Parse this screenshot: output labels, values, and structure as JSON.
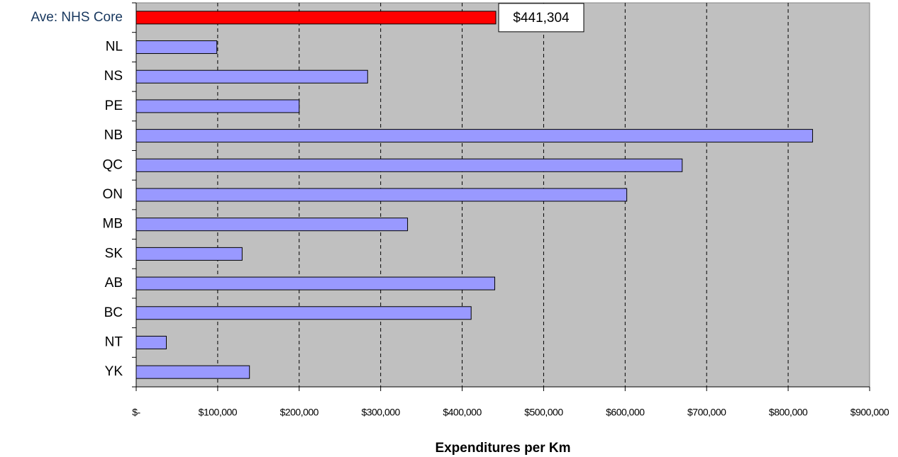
{
  "chart_data": {
    "type": "barh",
    "x_label": "Expenditures per Km",
    "categories": [
      "Ave: NHS Core",
      "NL",
      "NS",
      "PE",
      "NB",
      "QC",
      "ON",
      "MB",
      "SK",
      "AB",
      "BC",
      "NT",
      "YK"
    ],
    "values": [
      441304,
      99000,
      284000,
      200000,
      830000,
      670000,
      602000,
      333000,
      130000,
      440000,
      411000,
      37000,
      139000
    ],
    "value_labels": [
      "$441,304",
      null,
      null,
      null,
      null,
      null,
      null,
      null,
      null,
      null,
      null,
      null,
      null
    ],
    "colors": [
      "#ff0000",
      "#9999ff",
      "#9999ff",
      "#9999ff",
      "#9999ff",
      "#9999ff",
      "#9999ff",
      "#9999ff",
      "#9999ff",
      "#9999ff",
      "#9999ff",
      "#9999ff",
      "#9999ff"
    ],
    "xlim": [
      0,
      900000
    ],
    "xticks": [
      {
        "value": 0,
        "label": "$-"
      },
      {
        "value": 100000,
        "label": "$100,000"
      },
      {
        "value": 200000,
        "label": "$200,000"
      },
      {
        "value": 300000,
        "label": "$300,000"
      },
      {
        "value": 400000,
        "label": "$400,000"
      },
      {
        "value": 500000,
        "label": "$500,000"
      },
      {
        "value": 600000,
        "label": "$600,000"
      },
      {
        "value": 700000,
        "label": "$700,000"
      },
      {
        "value": 800000,
        "label": "$800,000"
      },
      {
        "value": 900000,
        "label": "$900,000"
      }
    ],
    "grid": true,
    "plot_background": "#c0c0c0"
  }
}
